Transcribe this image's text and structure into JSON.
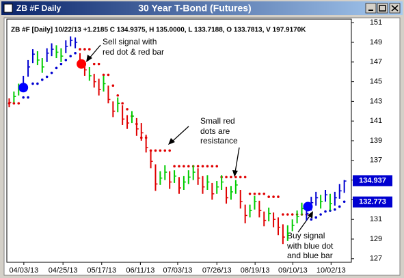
{
  "window": {
    "title": "ZB #F Daily"
  },
  "chart_data": {
    "type": "ohlc",
    "title": "30 Year T-Bond (Futures)",
    "header": "ZB #F [Daily] 10/22/13 +1.2185 C 134.9375, H 135.0000, L 133.7188, O 133.7813, V 197.9170K",
    "xlim": [
      -0.5,
      72.5
    ],
    "xticks": [
      {
        "value": 3.1,
        "label": "04/03/13"
      },
      {
        "value": 11.4,
        "label": "04/25/13"
      },
      {
        "value": 19.6,
        "label": "05/17/13"
      },
      {
        "value": 27.8,
        "label": "06/11/13"
      },
      {
        "value": 35.7,
        "label": "07/03/13"
      },
      {
        "value": 44,
        "label": "07/26/13"
      },
      {
        "value": 52.1,
        "label": "08/19/13"
      },
      {
        "value": 60.1,
        "label": "09/10/13"
      },
      {
        "value": 68.2,
        "label": "10/02/13"
      }
    ],
    "ylim": [
      126.5,
      151.5
    ],
    "yticks": [
      127,
      129,
      131,
      133,
      135,
      137,
      139,
      141,
      143,
      145,
      147,
      149,
      151
    ],
    "palette": {
      "r": "#e00000",
      "g": "#00cc00",
      "b": "#0000d0"
    },
    "high": [
      143.3,
      144.0,
      144.8,
      145.6,
      147.2,
      148.3,
      148.1,
      147.4,
      148.4,
      148.9,
      148.7,
      148.4,
      149.2,
      149.6,
      149.5,
      147.9,
      147.0,
      146.5,
      145.8,
      145.3,
      145.6,
      144.6,
      143.0,
      143.4,
      142.6,
      141.6,
      142.0,
      141.3,
      140.8,
      139.6,
      138.0,
      136.6,
      135.9,
      136.5,
      135.9,
      136.0,
      135.3,
      135.4,
      136.0,
      136.5,
      136.2,
      135.4,
      135.5,
      134.7,
      134.9,
      135.5,
      134.3,
      134.4,
      135.0,
      134.0,
      132.5,
      132.5,
      133.4,
      132.9,
      131.8,
      132.2,
      131.7,
      131.2,
      130.5,
      130.4,
      131.0,
      131.9,
      132.7,
      132.4,
      133.3,
      133.8,
      133.5,
      134.0,
      133.6,
      133.8,
      134.6,
      135.0
    ],
    "low": [
      142.4,
      142.9,
      143.6,
      144.2,
      145.5,
      146.9,
      146.7,
      145.9,
      147.0,
      147.6,
      147.4,
      147.0,
      147.9,
      148.6,
      148.4,
      146.4,
      145.6,
      145.1,
      144.4,
      143.6,
      144.0,
      142.8,
      141.4,
      141.9,
      140.6,
      140.2,
      140.8,
      139.5,
      139.0,
      137.8,
      136.2,
      133.9,
      134.5,
      135.0,
      134.1,
      134.7,
      133.6,
      134.0,
      134.6,
      135.0,
      134.5,
      133.6,
      134.0,
      133.0,
      133.6,
      134.0,
      132.6,
      133.0,
      133.6,
      132.1,
      130.6,
      131.2,
      132.0,
      131.2,
      130.3,
      130.8,
      130.2,
      129.4,
      128.5,
      128.8,
      129.8,
      130.6,
      131.4,
      130.9,
      131.9,
      132.4,
      132.1,
      132.8,
      131.9,
      132.4,
      133.1,
      133.7
    ],
    "close": [
      142.9,
      143.5,
      144.3,
      144.8,
      146.5,
      147.8,
      147.2,
      146.5,
      147.9,
      148.3,
      148.0,
      147.6,
      148.6,
      149.2,
      149.0,
      146.8,
      146.2,
      145.6,
      145.0,
      144.2,
      144.8,
      143.2,
      142.0,
      142.8,
      141.2,
      140.8,
      141.5,
      140.2,
      139.8,
      138.3,
      136.9,
      134.6,
      135.2,
      135.8,
      134.8,
      135.4,
      134.2,
      134.8,
      135.3,
      135.8,
      135.2,
      134.3,
      134.8,
      133.6,
      134.3,
      134.8,
      133.2,
      133.8,
      134.5,
      132.8,
      131.4,
      131.9,
      132.8,
      131.9,
      130.9,
      131.6,
      131.0,
      130.2,
      129.2,
      129.6,
      130.4,
      131.3,
      132.1,
      131.6,
      132.7,
      133.2,
      132.8,
      133.5,
      132.6,
      133.2,
      133.9,
      134.9
    ],
    "bar_colors": [
      "r",
      "g",
      "g",
      "b",
      "b",
      "b",
      "g",
      "g",
      "b",
      "b",
      "g",
      "g",
      "b",
      "b",
      "b",
      "r",
      "r",
      "g",
      "r",
      "r",
      "g",
      "r",
      "r",
      "g",
      "r",
      "r",
      "g",
      "r",
      "r",
      "r",
      "r",
      "r",
      "g",
      "g",
      "r",
      "g",
      "r",
      "g",
      "g",
      "g",
      "r",
      "r",
      "g",
      "r",
      "g",
      "g",
      "r",
      "g",
      "g",
      "r",
      "r",
      "g",
      "g",
      "r",
      "r",
      "g",
      "r",
      "r",
      "r",
      "g",
      "g",
      "g",
      "g",
      "b",
      "b",
      "b",
      "g",
      "b",
      "g",
      "b",
      "b",
      "b"
    ],
    "stops": [
      142.8,
      142.8,
      142.8,
      143.4,
      143.4,
      144.8,
      144.8,
      145.2,
      145.5,
      145.9,
      146.4,
      146.8,
      147.2,
      147.6,
      147.9,
      148.3,
      148.3,
      148.3,
      146.8,
      146.8,
      145.7,
      145.7,
      144.6,
      143.6,
      142.8,
      142.2,
      141.5,
      140.7,
      139.3,
      139.3,
      138.0,
      138.0,
      138.0,
      138.0,
      138.0,
      136.4,
      136.4,
      136.4,
      136.4,
      136.4,
      136.4,
      136.4,
      136.4,
      136.4,
      136.4,
      135.3,
      135.3,
      135.3,
      135.3,
      135.3,
      135.3,
      133.6,
      133.6,
      133.6,
      133.6,
      133.3,
      133.3,
      133.3,
      131.5,
      131.5,
      131.5,
      131.5,
      131.5,
      131.5,
      131.0,
      131.2,
      131.5,
      131.8,
      131.9,
      132.0,
      132.3,
      132.8
    ],
    "stop_colors": [
      "r",
      "r",
      "r",
      "b",
      "b",
      "b",
      "b",
      "b",
      "b",
      "b",
      "b",
      "b",
      "b",
      "b",
      "b",
      "r",
      "r",
      "r",
      "r",
      "r",
      "r",
      "r",
      "r",
      "r",
      "r",
      "r",
      "r",
      "r",
      "r",
      "r",
      "r",
      "r",
      "r",
      "r",
      "r",
      "r",
      "r",
      "r",
      "r",
      "r",
      "r",
      "r",
      "r",
      "r",
      "r",
      "r",
      "r",
      "r",
      "r",
      "r",
      "r",
      "r",
      "r",
      "r",
      "r",
      "r",
      "r",
      "r",
      "r",
      "r",
      "r",
      "r",
      "r",
      "r",
      "b",
      "b",
      "b",
      "b",
      "b",
      "b",
      "b",
      "b"
    ],
    "signals": [
      {
        "x": 3,
        "y": 144.4,
        "color": "#0000ff"
      },
      {
        "x": 15.3,
        "y": 146.8,
        "color": "#ff0000"
      },
      {
        "x": 63.3,
        "y": 132.3,
        "color": "#0000ff"
      }
    ],
    "price_labels": [
      134.937,
      132.773
    ],
    "price_label_color": "#0000d0",
    "annotations": [
      {
        "lines": [
          "Sell signal with",
          "red dot & red bar"
        ]
      },
      {
        "lines": [
          "Small red",
          "dots are",
          "resistance"
        ]
      },
      {
        "lines": [
          "Buy signal",
          "with blue dot",
          "and blue bar"
        ]
      }
    ]
  }
}
